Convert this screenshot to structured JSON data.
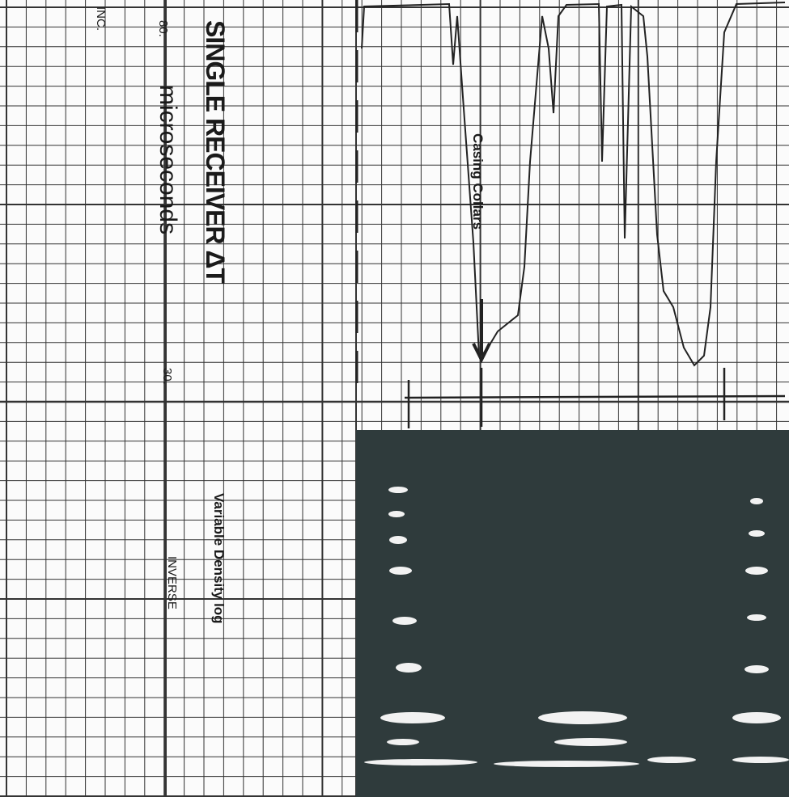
{
  "header": {
    "title": "SINGLE RECEIVER ΔT",
    "company": "INC."
  },
  "scale": {
    "left": "80.",
    "unit": "microseconds",
    "right": "30."
  },
  "annotation": {
    "label": "Casing Collars"
  },
  "panel": {
    "title": "Variable Density log",
    "mode": "INVERSE"
  }
}
